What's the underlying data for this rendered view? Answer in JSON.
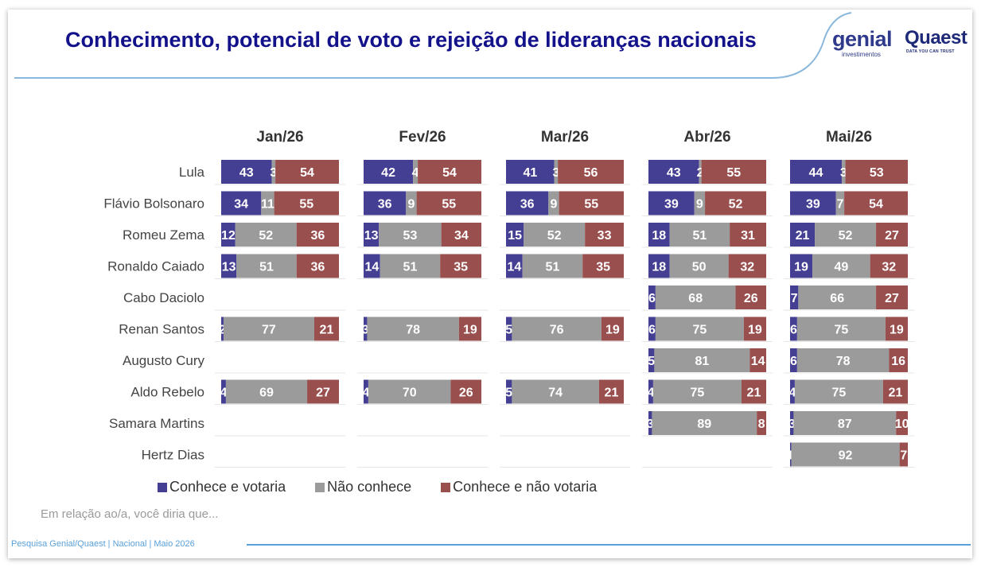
{
  "title": "Conhecimento, potencial de voto e rejeição de lideranças nacionais",
  "logos": {
    "genial": "genial",
    "genial_sub": "investimentos",
    "quaest": "Quaest",
    "quaest_sub": "DATA YOU CAN TRUST"
  },
  "note": "Em relação ao/a, você diria que...",
  "footer": "Pesquisa Genial/Quaest | Nacional | Maio 2026",
  "colors": {
    "conhece_votaria": "#453f94",
    "nao_conhece": "#9b9b9b",
    "conhece_nao_votaria": "#9a4f4f",
    "title": "#13128a"
  },
  "chart_data": {
    "type": "bar",
    "orientation": "horizontal-stacked",
    "title": "Conhecimento, potencial de voto e rejeição de lideranças nacionais",
    "legend_position": "bottom",
    "categories": [
      "Lula",
      "Flávio Bolsonaro",
      "Romeu Zema",
      "Ronaldo Caiado",
      "Cabo Daciolo",
      "Renan Santos",
      "Augusto Cury",
      "Aldo Rebelo",
      "Samara Martins",
      "Hertz Dias"
    ],
    "series_names": [
      "Conhece e votaria",
      "Não conhece",
      "Conhece e não votaria"
    ],
    "panels": [
      {
        "name": "Jan/26",
        "values": [
          [
            43,
            3,
            54
          ],
          [
            34,
            11,
            55
          ],
          [
            12,
            52,
            36
          ],
          [
            13,
            51,
            36
          ],
          null,
          [
            2,
            77,
            21
          ],
          null,
          [
            4,
            69,
            27
          ],
          null,
          null
        ]
      },
      {
        "name": "Fev/26",
        "values": [
          [
            42,
            4,
            54
          ],
          [
            36,
            9,
            55
          ],
          [
            13,
            53,
            34
          ],
          [
            14,
            51,
            35
          ],
          null,
          [
            3,
            78,
            19
          ],
          null,
          [
            4,
            70,
            26
          ],
          null,
          null
        ]
      },
      {
        "name": "Mar/26",
        "values": [
          [
            41,
            3,
            56
          ],
          [
            36,
            9,
            55
          ],
          [
            15,
            52,
            33
          ],
          [
            14,
            51,
            35
          ],
          null,
          [
            5,
            76,
            19
          ],
          null,
          [
            5,
            74,
            21
          ],
          null,
          null
        ]
      },
      {
        "name": "Abr/26",
        "values": [
          [
            43,
            2,
            55
          ],
          [
            39,
            9,
            52
          ],
          [
            18,
            51,
            31
          ],
          [
            18,
            50,
            32
          ],
          [
            6,
            68,
            26
          ],
          [
            6,
            75,
            19
          ],
          [
            5,
            81,
            14
          ],
          [
            4,
            75,
            21
          ],
          [
            3,
            89,
            8
          ],
          null
        ]
      },
      {
        "name": "Mai/26",
        "values": [
          [
            44,
            3,
            53
          ],
          [
            39,
            7,
            54
          ],
          [
            21,
            52,
            27
          ],
          [
            19,
            49,
            32
          ],
          [
            7,
            66,
            27
          ],
          [
            6,
            75,
            19
          ],
          [
            6,
            78,
            16
          ],
          [
            4,
            75,
            21
          ],
          [
            3,
            87,
            10
          ],
          [
            1,
            92,
            7
          ]
        ]
      }
    ]
  }
}
